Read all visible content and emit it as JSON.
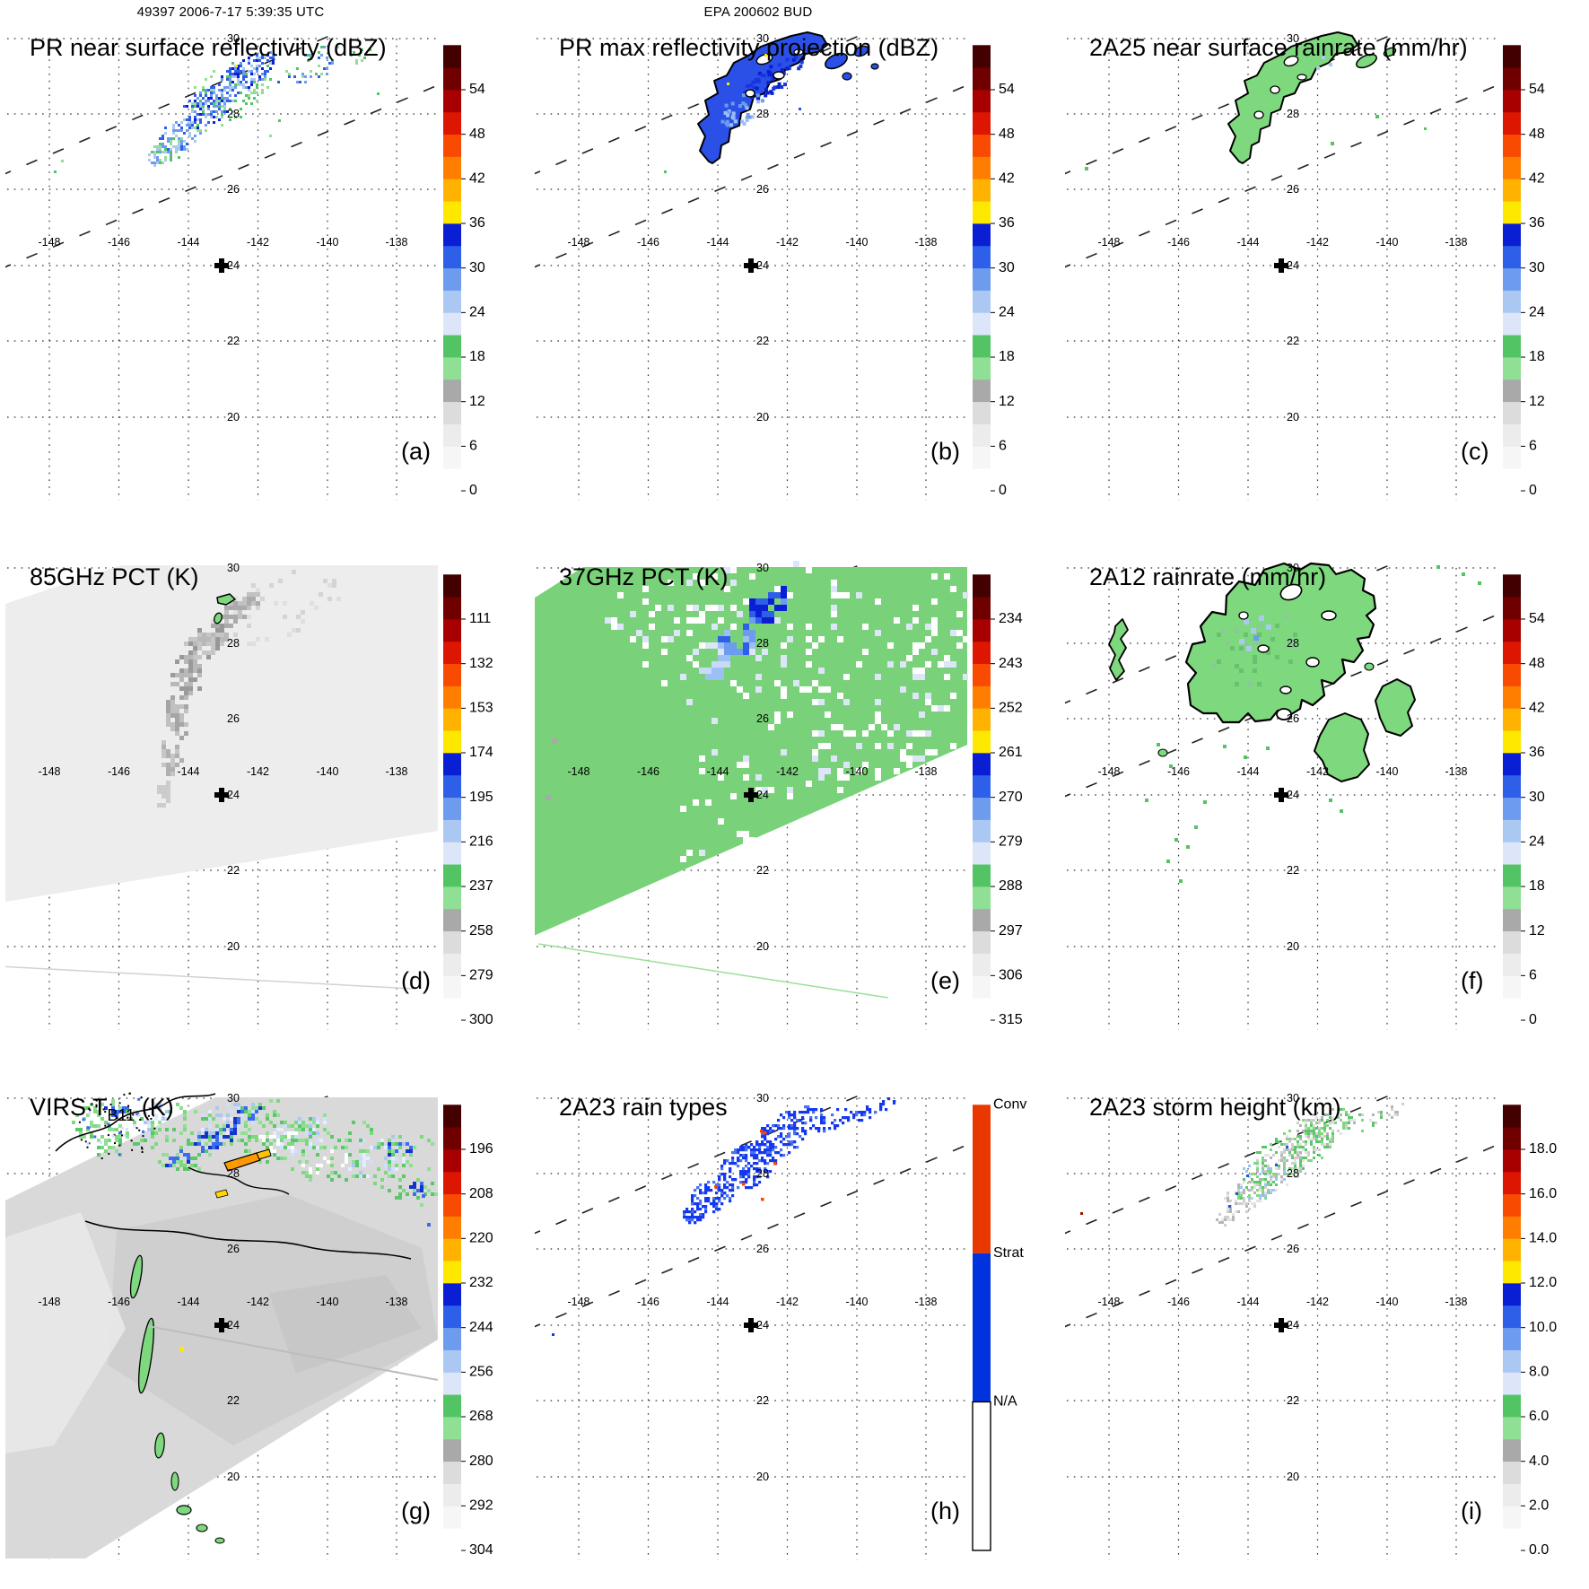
{
  "header": {
    "left": "49397 2006-7-17 5:39:35 UTC",
    "center": "EPA 200602 BUD"
  },
  "axes": {
    "lon_ticks": [
      -148,
      -146,
      -144,
      -142,
      -140,
      -138
    ],
    "lat_ticks": [
      30,
      28,
      26,
      24,
      22,
      20
    ],
    "marker": {
      "lon": -143,
      "lat": 24
    }
  },
  "palette": {
    "scale_colors_bottom_to_top": [
      "#ffffff",
      "#f6f6f6",
      "#ececec",
      "#dcdcdc",
      "#a9a9a9",
      "#8fdf94",
      "#52c463",
      "#dde6f8",
      "#aac8f2",
      "#6d9bee",
      "#2e5fe8",
      "#0a1fd4",
      "#ffe800",
      "#ffb300",
      "#ff7e00",
      "#f84a00",
      "#dc1600",
      "#a80000",
      "#700000",
      "#420000"
    ],
    "raintype_conv": "#e83800",
    "raintype_strat": "#0033dd",
    "raintype_na": "#ffffff",
    "swath_gray_85": "#ededed",
    "swath_green_37": "#79d279",
    "swath_gray_virs": "#d9d9d9"
  },
  "chart_data": [
    {
      "id": "a",
      "type": "heatmap",
      "label": "(a)",
      "title": "PR near surface reflectivity (dBZ)",
      "colorbar": "dbz",
      "colorbar_ticks": [
        54,
        48,
        42,
        36,
        30,
        24,
        18,
        12,
        6,
        0
      ]
    },
    {
      "id": "b",
      "type": "heatmap",
      "label": "(b)",
      "title": "PR max reflectivity projection (dBZ)",
      "colorbar": "dbz",
      "colorbar_ticks": [
        54,
        48,
        42,
        36,
        30,
        24,
        18,
        12,
        6,
        0
      ]
    },
    {
      "id": "c",
      "type": "heatmap",
      "label": "(c)",
      "title": "2A25 near surface rainrate (mm/hr)",
      "colorbar": "dbz",
      "colorbar_ticks": [
        54,
        48,
        42,
        36,
        30,
        24,
        18,
        12,
        6,
        0
      ]
    },
    {
      "id": "d",
      "type": "heatmap",
      "label": "(d)",
      "title": "85GHz PCT (K)",
      "colorbar": "pct85",
      "colorbar_ticks": [
        111,
        132,
        153,
        174,
        195,
        216,
        237,
        258,
        279,
        300
      ]
    },
    {
      "id": "e",
      "type": "heatmap",
      "label": "(e)",
      "title": "37GHz PCT (K)",
      "colorbar": "pct37",
      "colorbar_ticks": [
        234,
        243,
        252,
        261,
        270,
        279,
        288,
        297,
        306,
        315
      ]
    },
    {
      "id": "f",
      "type": "heatmap",
      "label": "(f)",
      "title": "2A12 rainrate (mm/hr)",
      "colorbar": "dbz",
      "colorbar_ticks": [
        54,
        48,
        42,
        36,
        30,
        24,
        18,
        12,
        6,
        0
      ]
    },
    {
      "id": "g",
      "type": "heatmap",
      "label": "(g)",
      "title": "VIRS T",
      "title_sub": "B11",
      "title_suffix": " (K)",
      "colorbar": "virs",
      "colorbar_ticks": [
        196,
        208,
        220,
        232,
        244,
        256,
        268,
        280,
        292,
        304
      ]
    },
    {
      "id": "h",
      "type": "heatmap",
      "label": "(h)",
      "title": "2A23 rain types",
      "colorbar": "raintype",
      "categories": [
        "Conv",
        "Strat",
        "N/A"
      ]
    },
    {
      "id": "i",
      "type": "heatmap",
      "label": "(i)",
      "title": "2A23 storm height (km)",
      "colorbar": "height",
      "colorbar_ticks": [
        18,
        16,
        14,
        12,
        10,
        8,
        6,
        4,
        2,
        0
      ]
    }
  ]
}
